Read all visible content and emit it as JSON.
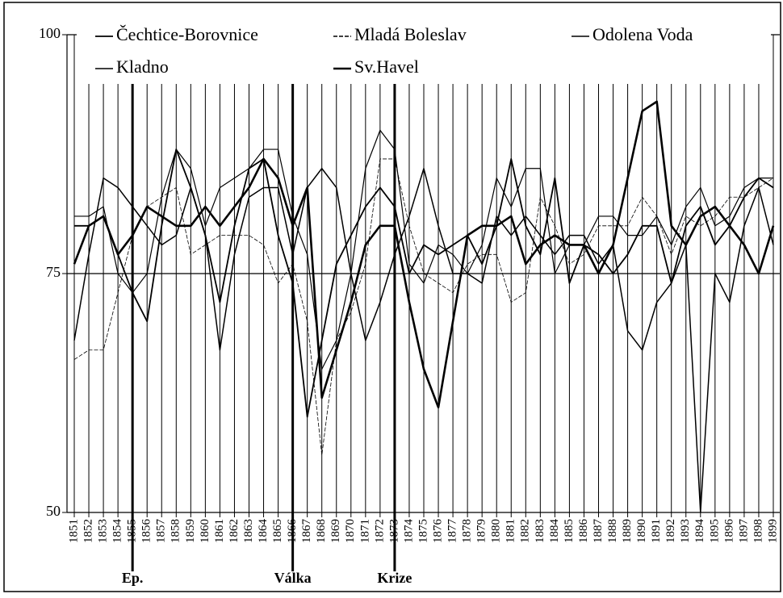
{
  "chart_data": {
    "type": "line",
    "x": [
      1851,
      1852,
      1853,
      1854,
      1855,
      1856,
      1857,
      1858,
      1859,
      1860,
      1861,
      1862,
      1863,
      1864,
      1865,
      1866,
      1867,
      1868,
      1869,
      1870,
      1871,
      1872,
      1873,
      1874,
      1875,
      1876,
      1877,
      1878,
      1879,
      1880,
      1881,
      1882,
      1883,
      1884,
      1885,
      1886,
      1887,
      1888,
      1889,
      1890,
      1891,
      1892,
      1893,
      1894,
      1895,
      1896,
      1897,
      1898,
      1899
    ],
    "series": [
      {
        "name": "Čechtice-Borovnice",
        "color": "#000000",
        "width": 1.8,
        "values": [
          80,
          80,
          81,
          77,
          73,
          70,
          80,
          88,
          84,
          79,
          72,
          80,
          86,
          87,
          79,
          74,
          60,
          68,
          76,
          79,
          82,
          84,
          82,
          75,
          78,
          77,
          78,
          79,
          76,
          80,
          87,
          80,
          77,
          85,
          74,
          78,
          77,
          75,
          77,
          80,
          80,
          74,
          80,
          82,
          78,
          80,
          83,
          85,
          84
        ]
      },
      {
        "name": "Mladá Boleslav",
        "color": "#000000",
        "width": 0.8,
        "dashed": true,
        "values": [
          66,
          67,
          67,
          73,
          79,
          82,
          83,
          84,
          77,
          78,
          79,
          79,
          79,
          78,
          74,
          76,
          70,
          56,
          68,
          71,
          76,
          87,
          87,
          80,
          75,
          74,
          73,
          76,
          77,
          77,
          72,
          73,
          83,
          80,
          76,
          77,
          80,
          80,
          80,
          83,
          81,
          77,
          81,
          80,
          81,
          83,
          83,
          84,
          85
        ]
      },
      {
        "name": "Odolena Voda",
        "color": "#000000",
        "width": 1.2,
        "values": [
          81,
          81,
          82,
          75,
          73,
          75,
          83,
          88,
          86,
          80,
          84,
          85,
          86,
          88,
          88,
          81,
          77,
          65,
          68,
          75,
          86,
          90,
          88,
          76,
          74,
          78,
          77,
          75,
          78,
          85,
          82,
          86,
          86,
          75,
          78,
          78,
          81,
          81,
          79,
          79,
          81,
          78,
          82,
          84,
          80,
          81,
          84,
          85,
          85
        ]
      },
      {
        "name": "Kladno",
        "color": "#000000",
        "width": 1.5,
        "values": [
          68,
          77,
          85,
          84,
          82,
          80,
          78,
          79,
          84,
          79,
          67,
          77,
          83,
          84,
          84,
          77,
          84,
          86,
          84,
          75,
          68,
          72,
          77,
          81,
          86,
          80,
          75,
          75,
          74,
          81,
          79,
          81,
          79,
          77,
          79,
          79,
          76,
          78,
          69,
          67,
          72,
          74,
          78,
          50,
          75,
          72,
          80,
          84,
          78
        ]
      },
      {
        "name": "Sv.Havel",
        "color": "#000000",
        "width": 2.6,
        "values": [
          76,
          80,
          81,
          77,
          79,
          82,
          81,
          80,
          80,
          82,
          80,
          82,
          84,
          87,
          85,
          80,
          84,
          62,
          67,
          72,
          78,
          80,
          80,
          72,
          65,
          61,
          70,
          79,
          80,
          80,
          81,
          76,
          78,
          79,
          78,
          78,
          75,
          78,
          85,
          92,
          93,
          80,
          78,
          81,
          82,
          80,
          78,
          75,
          80
        ]
      }
    ],
    "annotations": [
      {
        "text": "Ep.",
        "x": 1855
      },
      {
        "text": "Válka",
        "x": 1866
      },
      {
        "text": "Krize",
        "x": 1873
      }
    ],
    "xlim": [
      1851,
      1899
    ],
    "ylim": [
      50,
      100
    ],
    "yticks": [
      50,
      75,
      100
    ],
    "grid": true,
    "xgrid": true,
    "legend": "top"
  }
}
